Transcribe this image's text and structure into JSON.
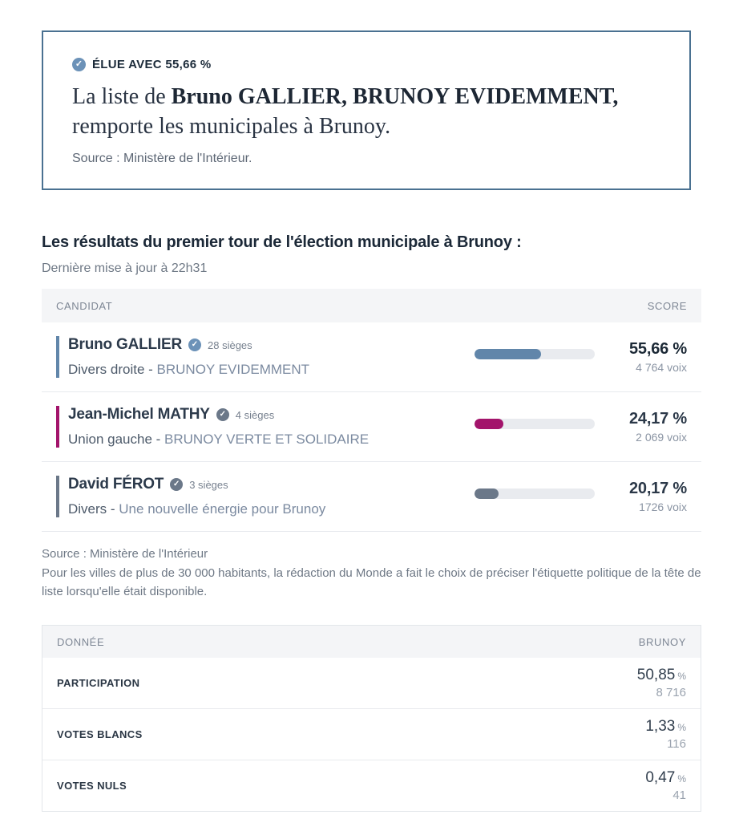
{
  "winner_card": {
    "status_label": "ÉLUE AVEC 55,66 %",
    "headline_prefix": "La liste de ",
    "headline_bold": "Bruno GALLIER, BRUNOY EVIDEMMENT,",
    "headline_suffix": " remporte les municipales à Brunoy.",
    "source": "Source : Ministère de l'Intérieur."
  },
  "results_section": {
    "title": "Les résultats du premier tour de l'élection municipale à Brunoy :",
    "updated": "Dernière mise à jour à 22h31",
    "table": {
      "col_candidate": "CANDIDAT",
      "col_score": "SCORE",
      "party_list_separator": " - ",
      "rows": [
        {
          "name": "Bruno GALLIER",
          "seats": "28 sièges",
          "party": "Divers droite",
          "list": "BRUNOY EVIDEMMENT",
          "pct": "55,66 %",
          "pct_value": 55.66,
          "votes": "4 764 voix",
          "color": "#6186aa",
          "check_color": "#6c92b8",
          "pct_bold": true
        },
        {
          "name": "Jean-Michel MATHY",
          "seats": "4 sièges",
          "party": "Union gauche",
          "list": "BRUNOY VERTE ET SOLIDAIRE",
          "pct": "24,17 %",
          "pct_value": 24.17,
          "votes": "2 069 voix",
          "color": "#a3146b",
          "check_color": "#6b7889",
          "pct_bold": false
        },
        {
          "name": "David FÉROT",
          "seats": "3 sièges",
          "party": "Divers",
          "list": "Une nouvelle énergie pour Brunoy",
          "pct": "20,17 %",
          "pct_value": 20.17,
          "votes": "1726 voix",
          "color": "#6b7889",
          "check_color": "#6b7889",
          "pct_bold": false
        }
      ]
    },
    "source": "Source : Ministère de l'Intérieur",
    "note": "Pour les villes de plus de 30 000 habitants, la rédaction du Monde a fait le choix de préciser l'étiquette politique de la tête de liste lorsqu'elle était disponible."
  },
  "stats_table": {
    "col_data": "DONNÉE",
    "col_city": "BRUNOY",
    "percent_sign": "%",
    "rows": [
      {
        "label": "PARTICIPATION",
        "pct": "50,85",
        "count": "8 716"
      },
      {
        "label": "VOTES BLANCS",
        "pct": "1,33",
        "count": "116"
      },
      {
        "label": "VOTES NULS",
        "pct": "0,47",
        "count": "41"
      }
    ]
  },
  "chart_data": {
    "type": "bar",
    "categories": [
      "Bruno GALLIER",
      "Jean-Michel MATHY",
      "David FÉROT"
    ],
    "values": [
      55.66,
      24.17,
      20.17
    ],
    "votes": [
      4764,
      2069,
      1726
    ],
    "seats": [
      28,
      4,
      3
    ],
    "title": "Les résultats du premier tour de l'élection municipale à Brunoy",
    "xlabel": "",
    "ylabel": "Score (%)",
    "ylim": [
      0,
      100
    ]
  }
}
